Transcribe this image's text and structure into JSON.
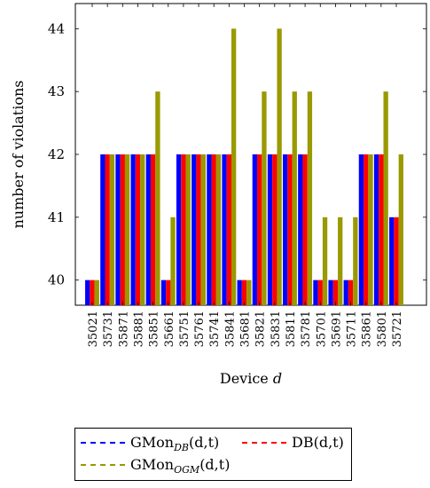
{
  "chart_data": {
    "type": "bar",
    "xlabel": "Device",
    "xlabel_var": "d",
    "ylabel": "number of violations",
    "ylim": [
      39.6,
      44.4
    ],
    "yticks": [
      40,
      41,
      42,
      43,
      44
    ],
    "grid": false,
    "legend_position": "bottom",
    "categories": [
      "35021",
      "35731",
      "35871",
      "35881",
      "35851",
      "35661",
      "35751",
      "35761",
      "35741",
      "35841",
      "35681",
      "35821",
      "35831",
      "35811",
      "35781",
      "35701",
      "35691",
      "35711",
      "35861",
      "35801",
      "35721"
    ],
    "series": [
      {
        "name": "GMon_DB(d,t)",
        "color": "#0000ff",
        "values": [
          40,
          42,
          42,
          42,
          42,
          40,
          42,
          42,
          42,
          42,
          40,
          42,
          42,
          42,
          42,
          40,
          40,
          40,
          42,
          42,
          41
        ]
      },
      {
        "name": "DB(d,t)",
        "color": "#ff0000",
        "values": [
          40,
          42,
          42,
          42,
          42,
          40,
          42,
          42,
          42,
          42,
          40,
          42,
          42,
          42,
          42,
          40,
          40,
          40,
          42,
          42,
          41
        ]
      },
      {
        "name": "GMon_OGM(d,t)",
        "color": "#999900",
        "values": [
          40,
          42,
          42,
          42,
          43,
          41,
          42,
          42,
          42,
          44,
          40,
          43,
          44,
          43,
          43,
          41,
          41,
          41,
          42,
          43,
          42
        ]
      }
    ]
  },
  "legend": {
    "item1_main": "GMon",
    "item1_sub": "DB",
    "item1_tail": "(d,t)",
    "item2_text": "DB(d,t)",
    "item3_main": "GMon",
    "item3_sub": "OGM",
    "item3_tail": "(d,t)"
  }
}
